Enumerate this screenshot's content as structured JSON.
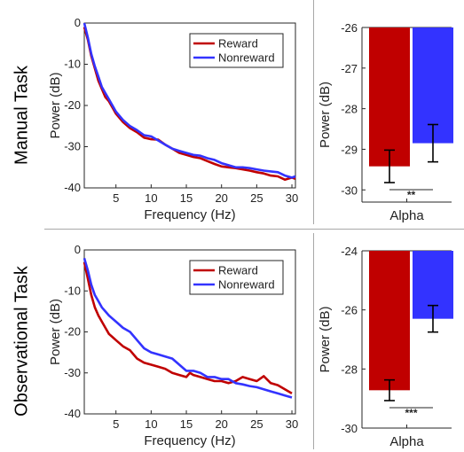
{
  "colors": {
    "reward": "#c00000",
    "nonreward": "#3333ff",
    "axis": "#262626"
  },
  "row_labels": [
    "Manual Task",
    "Observational Task"
  ],
  "chart_data": [
    {
      "type": "line",
      "xlabel": "Frequency (Hz)",
      "ylabel": "Power (dB)",
      "xlim": [
        0.5,
        30.5
      ],
      "ylim": [
        -40,
        0
      ],
      "xticks": [
        5,
        10,
        15,
        20,
        25,
        30
      ],
      "yticks": [
        0,
        -10,
        -20,
        -30,
        -40
      ],
      "legend_position": "top-right",
      "series": [
        {
          "name": "Reward",
          "color": "#c00000",
          "x": [
            0.5,
            1,
            1.5,
            2,
            2.5,
            3,
            3.5,
            4,
            5,
            6,
            7,
            8,
            9,
            10,
            11,
            12,
            13,
            14,
            15,
            16,
            17,
            18,
            19,
            20,
            21,
            22,
            23,
            24,
            25,
            26,
            27,
            28,
            29,
            30,
            30.5
          ],
          "y": [
            -1,
            -4,
            -8,
            -11,
            -14,
            -16,
            -18,
            -19,
            -22,
            -24,
            -25.5,
            -26.5,
            -27.8,
            -28.2,
            -28.3,
            -29.5,
            -30.5,
            -31.5,
            -32,
            -32.5,
            -32.8,
            -33.5,
            -34.2,
            -34.8,
            -35,
            -35.2,
            -35.5,
            -35.8,
            -36.2,
            -36.5,
            -37,
            -37.2,
            -38,
            -37.5,
            -37.8
          ]
        },
        {
          "name": "Nonreward",
          "color": "#3333ff",
          "x": [
            0.5,
            1,
            1.5,
            2,
            2.5,
            3,
            3.5,
            4,
            5,
            6,
            7,
            8,
            9,
            10,
            11,
            12,
            13,
            14,
            15,
            16,
            17,
            18,
            19,
            20,
            21,
            22,
            23,
            24,
            25,
            26,
            27,
            28,
            29,
            30,
            30.5
          ],
          "y": [
            0,
            -3.5,
            -7.5,
            -10.5,
            -13,
            -15.5,
            -17,
            -18.5,
            -21.5,
            -23.5,
            -25,
            -26,
            -27.2,
            -27.5,
            -28.5,
            -29.5,
            -30.5,
            -31,
            -31.5,
            -32,
            -32.2,
            -32.8,
            -33.2,
            -34,
            -34.5,
            -35,
            -35,
            -35.2,
            -35.5,
            -35.8,
            -36,
            -36.2,
            -37,
            -37.5,
            -37.2
          ]
        }
      ]
    },
    {
      "type": "bar",
      "categories": [
        "Alpha"
      ],
      "xlabel": "Alpha",
      "ylabel": "Power (dB)",
      "ylim": [
        -30.3,
        -26
      ],
      "yticks": [
        -26,
        -27,
        -28,
        -29,
        -30
      ],
      "baseline": -26,
      "series": [
        {
          "name": "Reward",
          "color": "#c00000",
          "values": [
            -29.42
          ],
          "error": [
            0.4
          ]
        },
        {
          "name": "Nonreward",
          "color": "#3333ff",
          "values": [
            -28.85
          ],
          "error": [
            0.46
          ]
        }
      ],
      "significance": "**"
    },
    {
      "type": "line",
      "xlabel": "Frequency (Hz)",
      "ylabel": "Power (dB)",
      "xlim": [
        0.5,
        30.5
      ],
      "ylim": [
        -40,
        0
      ],
      "xticks": [
        5,
        10,
        15,
        20,
        25,
        30
      ],
      "yticks": [
        0,
        -10,
        -20,
        -30,
        -40
      ],
      "legend_position": "top-right",
      "series": [
        {
          "name": "Reward",
          "color": "#c00000",
          "x": [
            0.5,
            1,
            1.5,
            2,
            2.5,
            3,
            3.5,
            4,
            5,
            6,
            7,
            8,
            9,
            10,
            11,
            12,
            13,
            14,
            15,
            15.5,
            16,
            17,
            18,
            19,
            20,
            21,
            22,
            23,
            24,
            25,
            26,
            27,
            28,
            29,
            30
          ],
          "y": [
            -3,
            -7,
            -11,
            -14,
            -16,
            -17.5,
            -19,
            -20.5,
            -22,
            -23.5,
            -24.5,
            -26.5,
            -27.5,
            -28,
            -28.5,
            -29,
            -30,
            -30.5,
            -31,
            -30,
            -30.5,
            -31,
            -31.5,
            -32,
            -32,
            -32.5,
            -32,
            -31,
            -31.5,
            -32,
            -30.8,
            -32.5,
            -33,
            -34,
            -35
          ]
        },
        {
          "name": "Nonreward",
          "color": "#3333ff",
          "x": [
            0.5,
            1,
            1.5,
            2,
            2.5,
            3,
            3.5,
            4,
            5,
            6,
            7,
            8,
            9,
            10,
            11,
            12,
            13,
            14,
            15,
            15.5,
            16,
            17,
            18,
            19,
            20,
            21,
            22,
            23,
            24,
            25,
            26,
            27,
            28,
            29,
            30
          ],
          "y": [
            -2,
            -5,
            -8.5,
            -11,
            -12.5,
            -14,
            -15,
            -16,
            -17.5,
            -19,
            -20,
            -22,
            -24,
            -25,
            -25.5,
            -26,
            -26.5,
            -28,
            -29.5,
            -29.5,
            -29.5,
            -30,
            -31,
            -31,
            -31.5,
            -31.5,
            -32.5,
            -32.8,
            -33.2,
            -33.5,
            -34,
            -34.5,
            -35,
            -35.5,
            -36
          ]
        }
      ]
    },
    {
      "type": "bar",
      "categories": [
        "Alpha"
      ],
      "xlabel": "Alpha",
      "ylabel": "Power (dB)",
      "ylim": [
        -30,
        -24
      ],
      "yticks": [
        -24,
        -26,
        -28,
        -30
      ],
      "baseline": -24,
      "series": [
        {
          "name": "Reward",
          "color": "#c00000",
          "values": [
            -28.72
          ],
          "error": [
            0.35
          ]
        },
        {
          "name": "Nonreward",
          "color": "#3333ff",
          "values": [
            -26.3
          ],
          "error": [
            0.45
          ]
        }
      ],
      "significance": "***"
    }
  ]
}
